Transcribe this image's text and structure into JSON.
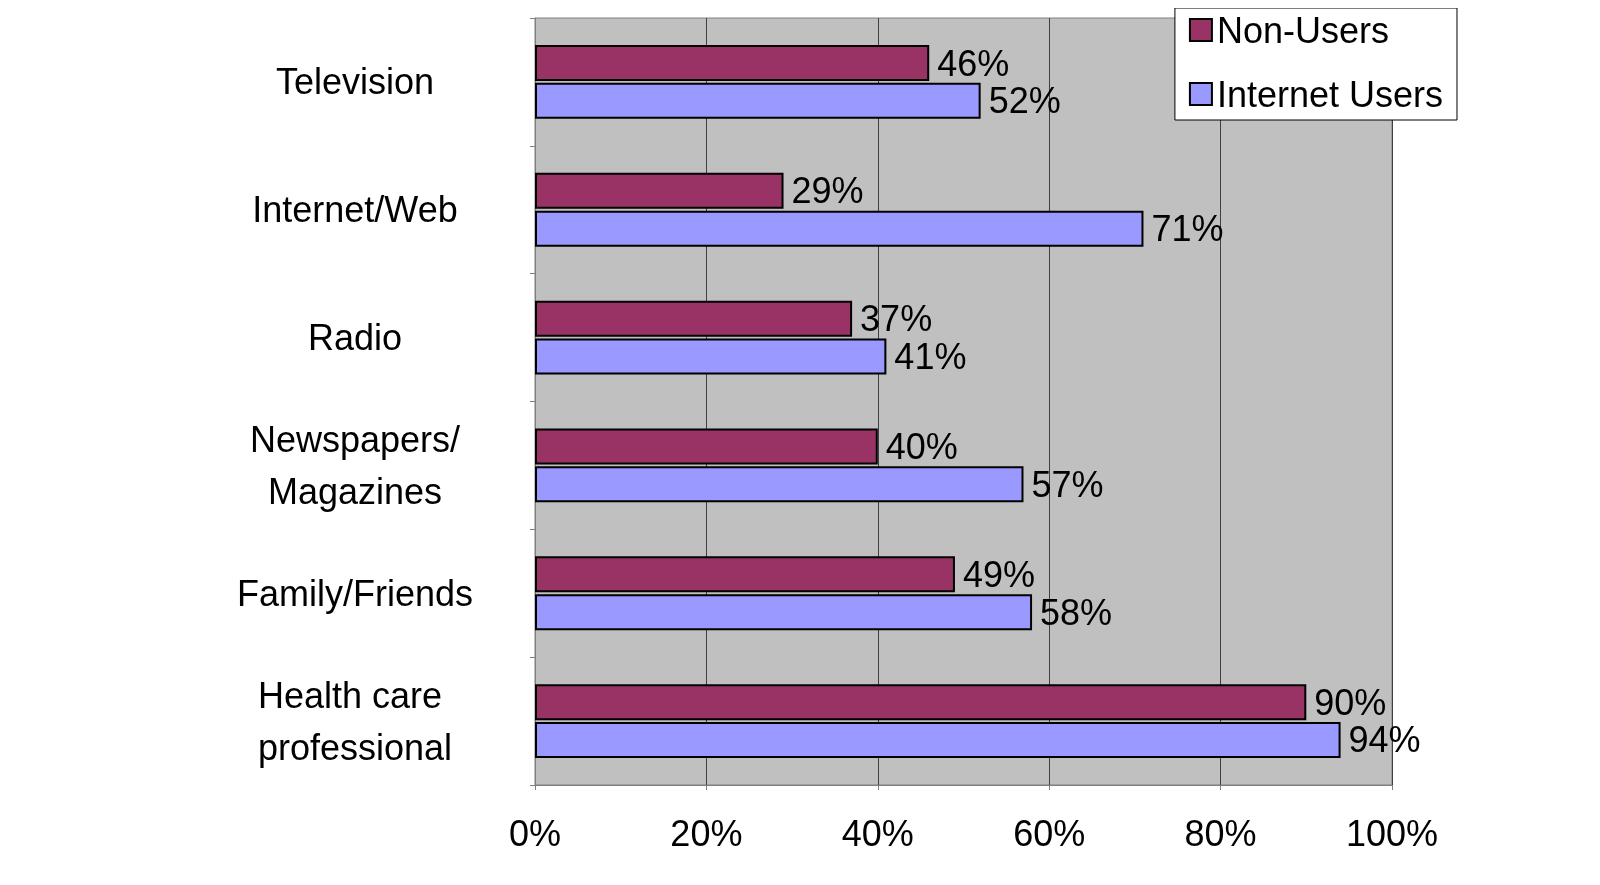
{
  "chart_data": {
    "type": "bar",
    "orientation": "horizontal",
    "categories": [
      "Television",
      "Internet/Web",
      "Radio",
      "Newspapers/Magazines",
      "Family/Friends",
      "Health care professional"
    ],
    "series": [
      {
        "name": "Non-Users",
        "color": "#993366",
        "values": [
          46,
          29,
          37,
          40,
          49,
          90
        ],
        "value_labels": [
          "46%",
          "29%",
          "37%",
          "40%",
          "49%",
          "90%"
        ]
      },
      {
        "name": "Internet Users",
        "color": "#9999ff",
        "values": [
          52,
          71,
          41,
          57,
          58,
          94
        ],
        "value_labels": [
          "52%",
          "71%",
          "41%",
          "57%",
          "58%",
          "94%"
        ]
      }
    ],
    "xlim": [
      0,
      100
    ],
    "xticks": [
      {
        "value": 0,
        "label": "0%"
      },
      {
        "value": 20,
        "label": "20%"
      },
      {
        "value": 40,
        "label": "40%"
      },
      {
        "value": 60,
        "label": "60%"
      },
      {
        "value": 80,
        "label": "80%"
      },
      {
        "value": 100,
        "label": "100%"
      }
    ],
    "grid": "x",
    "legend": "top right"
  }
}
